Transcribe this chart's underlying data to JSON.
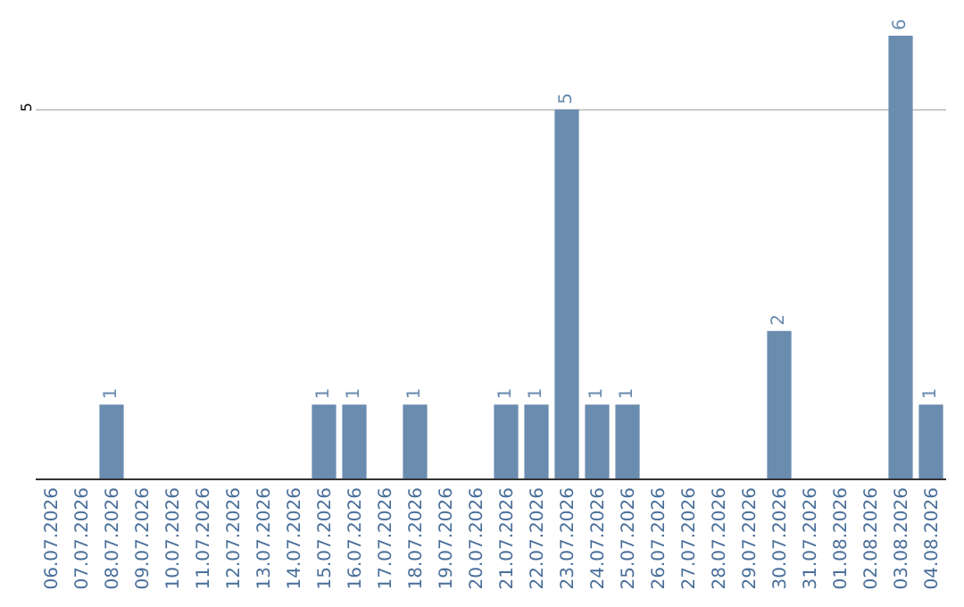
{
  "chart_data": {
    "type": "bar",
    "categories": [
      "06.07.2026",
      "07.07.2026",
      "08.07.2026",
      "09.07.2026",
      "10.07.2026",
      "11.07.2026",
      "12.07.2026",
      "13.07.2026",
      "14.07.2026",
      "15.07.2026",
      "16.07.2026",
      "17.07.2026",
      "18.07.2026",
      "19.07.2026",
      "20.07.2026",
      "21.07.2026",
      "22.07.2026",
      "23.07.2026",
      "24.07.2026",
      "25.07.2026",
      "26.07.2026",
      "27.07.2026",
      "28.07.2026",
      "29.07.2026",
      "30.07.2026",
      "31.07.2026",
      "01.08.2026",
      "02.08.2026",
      "03.08.2026",
      "04.08.2026"
    ],
    "values": [
      0,
      0,
      1,
      0,
      0,
      0,
      0,
      0,
      0,
      1,
      1,
      0,
      1,
      0,
      0,
      1,
      1,
      5,
      1,
      1,
      0,
      0,
      0,
      0,
      2,
      0,
      0,
      0,
      6,
      1
    ],
    "value_labels": [
      null,
      null,
      "1",
      null,
      null,
      null,
      null,
      null,
      null,
      "1",
      "1",
      null,
      "1",
      null,
      null,
      "1",
      "1",
      "5",
      "1",
      "1",
      null,
      null,
      null,
      null,
      "2",
      null,
      null,
      null,
      "6",
      "1"
    ],
    "color": "#6a8caf",
    "ylim": [
      0,
      6
    ],
    "yticks": [
      5
    ],
    "grid": "y",
    "legend": false
  }
}
